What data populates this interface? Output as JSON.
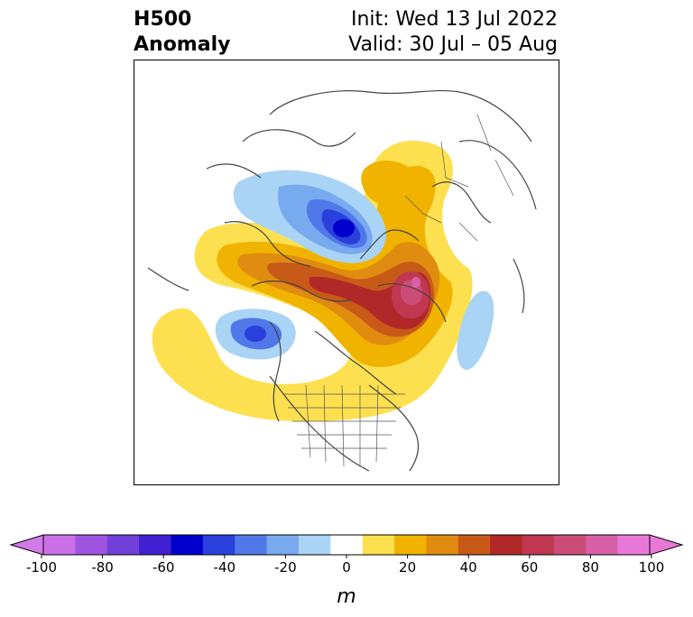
{
  "header": {
    "left_line1": "H500",
    "left_line2": "Anomaly",
    "right_line1": "Init: Wed 13 Jul 2022",
    "right_line2": "Valid: 30 Jul – 05 Aug"
  },
  "colorbar": {
    "unit": "m",
    "ticks": [
      "-100",
      "-80",
      "-60",
      "-40",
      "-20",
      "0",
      "20",
      "40",
      "60",
      "80",
      "100"
    ],
    "min_color": "#d27ae6",
    "max_color": "#e87ad6",
    "colors": [
      "#cc70e8",
      "#a055e0",
      "#7040d8",
      "#4020d0",
      "#0000cc",
      "#2a40dc",
      "#5078e8",
      "#78aaf0",
      "#aad4f5",
      "#ffffff",
      "#fde050",
      "#f0b400",
      "#e08c10",
      "#c85a18",
      "#b02828",
      "#c03850",
      "#cc4c78",
      "#d860a8",
      "#e878d8"
    ]
  },
  "map": {
    "anomaly_colors": {
      "neg_light": "#aad4f5",
      "neg_mid": "#78aaf0",
      "neg_strong": "#5078e8",
      "neg_deep": "#2a40dc",
      "neg_core": "#0000cc",
      "pos_light": "#fde050",
      "pos_mid": "#f0b400",
      "pos_orange": "#e08c10",
      "pos_dark": "#c85a18",
      "pos_red": "#b02828",
      "pos_core": "#c03850",
      "pos_peak": "#cc4c78"
    }
  }
}
